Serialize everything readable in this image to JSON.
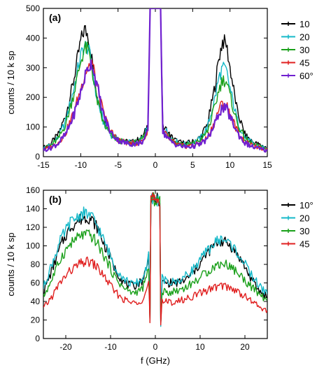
{
  "chart_data": [
    {
      "type": "line",
      "panel_label": "(a)",
      "ylabel": "counts / 10 k sp",
      "xlabel": "",
      "xlim": [
        -15,
        15
      ],
      "ylim": [
        0,
        500
      ],
      "xticks": [
        -15,
        -10,
        -5,
        0,
        5,
        10,
        15
      ],
      "yticks": [
        0,
        100,
        200,
        300,
        400,
        500
      ],
      "grid": false,
      "legend_placement": "right",
      "legend": [
        "10",
        "20",
        "30",
        "45",
        "60°"
      ],
      "x": [
        -15,
        -14,
        -13,
        -12,
        -11,
        -10,
        -9.5,
        -9,
        -8.5,
        -8,
        -7,
        -6,
        -5,
        -4,
        -3,
        -2,
        -1.5,
        -1,
        -0.7,
        -0.5,
        -0.3,
        0,
        0.3,
        0.5,
        0.7,
        1,
        1.5,
        2,
        3,
        4,
        5,
        6,
        7,
        8,
        8.5,
        9,
        9.5,
        10,
        11,
        12,
        13,
        14,
        15
      ],
      "series": [
        {
          "name": "10",
          "color": "#000000",
          "values": [
            30,
            45,
            75,
            140,
            250,
            390,
            430,
            410,
            330,
            230,
            130,
            80,
            60,
            50,
            50,
            60,
            75,
            110,
            500,
            500,
            500,
            500,
            500,
            500,
            500,
            100,
            90,
            70,
            50,
            45,
            50,
            65,
            110,
            240,
            330,
            390,
            380,
            300,
            150,
            75,
            50,
            40,
            30
          ]
        },
        {
          "name": "20",
          "color": "#14b8c8",
          "values": [
            28,
            40,
            65,
            120,
            220,
            340,
            375,
            365,
            310,
            215,
            120,
            75,
            58,
            50,
            48,
            55,
            70,
            100,
            500,
            500,
            500,
            500,
            500,
            500,
            500,
            95,
            85,
            65,
            48,
            42,
            47,
            60,
            100,
            200,
            265,
            300,
            290,
            230,
            120,
            65,
            45,
            35,
            28
          ]
        },
        {
          "name": "30",
          "color": "#1aa01a",
          "values": [
            26,
            38,
            60,
            110,
            205,
            320,
            365,
            360,
            300,
            210,
            115,
            72,
            55,
            48,
            46,
            52,
            66,
            95,
            500,
            500,
            500,
            500,
            500,
            500,
            500,
            90,
            80,
            62,
            45,
            40,
            44,
            55,
            85,
            170,
            225,
            260,
            255,
            205,
            110,
            60,
            42,
            32,
            26
          ]
        },
        {
          "name": "45",
          "color": "#e02020",
          "values": [
            24,
            32,
            48,
            80,
            145,
            225,
            275,
            305,
            320,
            265,
            150,
            85,
            58,
            48,
            45,
            48,
            60,
            85,
            500,
            500,
            500,
            500,
            500,
            500,
            500,
            85,
            72,
            55,
            40,
            35,
            38,
            45,
            65,
            120,
            160,
            180,
            175,
            145,
            85,
            50,
            36,
            28,
            22
          ]
        },
        {
          "name": "60°",
          "color": "#7020d0",
          "values": [
            22,
            30,
            45,
            75,
            135,
            215,
            265,
            300,
            318,
            260,
            145,
            82,
            56,
            46,
            43,
            46,
            58,
            82,
            500,
            500,
            500,
            500,
            500,
            500,
            500,
            82,
            70,
            52,
            38,
            33,
            35,
            42,
            60,
            110,
            148,
            165,
            160,
            135,
            80,
            46,
            33,
            26,
            20
          ]
        }
      ]
    },
    {
      "type": "line",
      "panel_label": "(b)",
      "ylabel": "counts / 10 k sp",
      "xlabel": "f (GHz)",
      "xlim": [
        -25,
        25
      ],
      "ylim": [
        0,
        160
      ],
      "xticks": [
        -20,
        -10,
        0,
        10,
        20
      ],
      "yticks": [
        0,
        20,
        40,
        60,
        80,
        100,
        120,
        140,
        160
      ],
      "grid": false,
      "legend_placement": "right",
      "legend": [
        "10°",
        "20",
        "30",
        "45"
      ],
      "x": [
        -25,
        -23,
        -21,
        -19,
        -17,
        -16,
        -15,
        -14,
        -13,
        -11,
        -9,
        -7,
        -5,
        -3,
        -2,
        -1.5,
        -1.2,
        -1,
        0,
        1,
        1.2,
        1.5,
        2,
        3,
        5,
        7,
        9,
        11,
        13,
        14,
        15,
        16,
        17,
        19,
        21,
        23,
        25
      ],
      "series": [
        {
          "name": "10°",
          "color": "#000000",
          "values": [
            50,
            75,
            102,
            120,
            128,
            130,
            131,
            127,
            120,
            97,
            75,
            60,
            56,
            62,
            75,
            90,
            20,
            150,
            150,
            150,
            15,
            60,
            60,
            60,
            60,
            64,
            74,
            88,
            100,
            104,
            105,
            103,
            99,
            86,
            68,
            52,
            45
          ]
        },
        {
          "name": "20",
          "color": "#14b8c8",
          "values": [
            55,
            82,
            108,
            125,
            133,
            135,
            134,
            130,
            122,
            100,
            78,
            64,
            58,
            63,
            77,
            93,
            20,
            150,
            150,
            150,
            15,
            65,
            63,
            60,
            62,
            68,
            78,
            91,
            102,
            106,
            107,
            105,
            101,
            88,
            72,
            58,
            48
          ]
        },
        {
          "name": "30",
          "color": "#1aa01a",
          "values": [
            45,
            65,
            88,
            102,
            110,
            112,
            112,
            109,
            103,
            85,
            66,
            54,
            49,
            53,
            64,
            80,
            18,
            150,
            150,
            150,
            14,
            52,
            50,
            50,
            52,
            56,
            62,
            70,
            77,
            80,
            81,
            80,
            77,
            68,
            58,
            48,
            42
          ]
        },
        {
          "name": "45",
          "color": "#e02020",
          "values": [
            32,
            46,
            62,
            73,
            80,
            82,
            83,
            81,
            77,
            64,
            50,
            42,
            38,
            42,
            51,
            62,
            17,
            150,
            150,
            150,
            15,
            42,
            40,
            39,
            40,
            43,
            47,
            51,
            55,
            56,
            57,
            56,
            54,
            49,
            42,
            35,
            30
          ]
        }
      ]
    }
  ]
}
